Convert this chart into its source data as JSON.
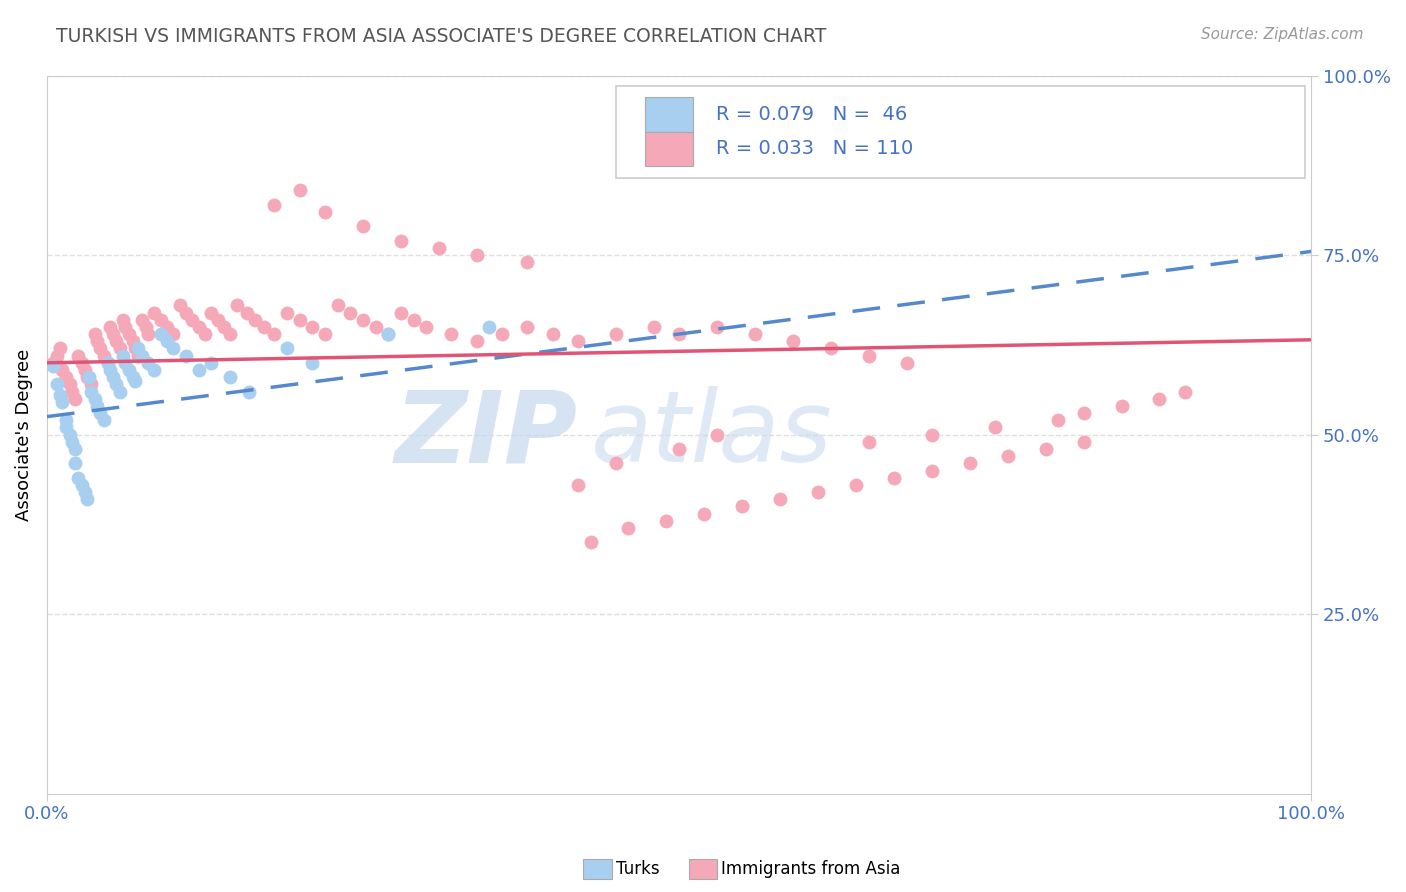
{
  "title": "TURKISH VS IMMIGRANTS FROM ASIA ASSOCIATE'S DEGREE CORRELATION CHART",
  "source": "Source: ZipAtlas.com",
  "ylabel": "Associate's Degree",
  "watermark_zip": "ZIP",
  "watermark_atlas": "atlas",
  "xlim": [
    0.0,
    1.0
  ],
  "ylim": [
    0.0,
    1.0
  ],
  "turks_color": "#a8cef0",
  "turks_edge": "#a8cef0",
  "asia_color": "#f5a8b8",
  "asia_edge": "#f5a8b8",
  "trend_turks_color": "#5588cc",
  "trend_asia_color": "#e05575",
  "R_turks": 0.079,
  "N_turks": 46,
  "R_asia": 0.033,
  "N_asia": 110,
  "legend_text_color": "#4472c4",
  "tick_color": "#4472c4",
  "title_color": "#555555",
  "source_color": "#999999",
  "grid_color": "#e0e0e0",
  "turks_x": [
    0.005,
    0.008,
    0.01,
    0.012,
    0.015,
    0.015,
    0.018,
    0.02,
    0.022,
    0.022,
    0.025,
    0.028,
    0.03,
    0.032,
    0.033,
    0.035,
    0.038,
    0.04,
    0.042,
    0.045,
    0.048,
    0.05,
    0.052,
    0.055,
    0.058,
    0.06,
    0.062,
    0.065,
    0.068,
    0.07,
    0.072,
    0.075,
    0.08,
    0.085,
    0.09,
    0.095,
    0.1,
    0.11,
    0.12,
    0.13,
    0.145,
    0.16,
    0.19,
    0.21,
    0.27,
    0.35
  ],
  "turks_y": [
    0.595,
    0.57,
    0.555,
    0.545,
    0.52,
    0.51,
    0.5,
    0.49,
    0.48,
    0.46,
    0.44,
    0.43,
    0.42,
    0.41,
    0.58,
    0.56,
    0.55,
    0.54,
    0.53,
    0.52,
    0.6,
    0.59,
    0.58,
    0.57,
    0.56,
    0.61,
    0.6,
    0.59,
    0.58,
    0.575,
    0.62,
    0.61,
    0.6,
    0.59,
    0.64,
    0.63,
    0.62,
    0.61,
    0.59,
    0.6,
    0.58,
    0.56,
    0.62,
    0.6,
    0.64,
    0.65
  ],
  "asia_x": [
    0.005,
    0.008,
    0.01,
    0.012,
    0.015,
    0.018,
    0.02,
    0.022,
    0.025,
    0.028,
    0.03,
    0.032,
    0.035,
    0.038,
    0.04,
    0.042,
    0.045,
    0.048,
    0.05,
    0.052,
    0.055,
    0.058,
    0.06,
    0.062,
    0.065,
    0.068,
    0.07,
    0.072,
    0.075,
    0.078,
    0.08,
    0.085,
    0.09,
    0.095,
    0.1,
    0.105,
    0.11,
    0.115,
    0.12,
    0.125,
    0.13,
    0.135,
    0.14,
    0.145,
    0.15,
    0.158,
    0.165,
    0.172,
    0.18,
    0.19,
    0.2,
    0.21,
    0.22,
    0.23,
    0.24,
    0.25,
    0.26,
    0.27,
    0.28,
    0.29,
    0.3,
    0.32,
    0.34,
    0.36,
    0.38,
    0.4,
    0.42,
    0.45,
    0.48,
    0.5,
    0.53,
    0.56,
    0.59,
    0.62,
    0.65,
    0.68,
    0.42,
    0.45,
    0.5,
    0.53,
    0.18,
    0.2,
    0.22,
    0.25,
    0.28,
    0.31,
    0.34,
    0.38,
    0.65,
    0.7,
    0.75,
    0.8,
    0.82,
    0.85,
    0.88,
    0.9,
    0.43,
    0.46,
    0.49,
    0.52,
    0.55,
    0.58,
    0.61,
    0.64,
    0.67,
    0.7,
    0.73,
    0.76,
    0.79,
    0.82
  ],
  "asia_y": [
    0.6,
    0.61,
    0.62,
    0.59,
    0.58,
    0.57,
    0.56,
    0.55,
    0.61,
    0.6,
    0.59,
    0.58,
    0.57,
    0.64,
    0.63,
    0.62,
    0.61,
    0.6,
    0.65,
    0.64,
    0.63,
    0.62,
    0.66,
    0.65,
    0.64,
    0.63,
    0.62,
    0.61,
    0.66,
    0.65,
    0.64,
    0.67,
    0.66,
    0.65,
    0.64,
    0.68,
    0.67,
    0.66,
    0.65,
    0.64,
    0.67,
    0.66,
    0.65,
    0.64,
    0.68,
    0.67,
    0.66,
    0.65,
    0.64,
    0.67,
    0.66,
    0.65,
    0.64,
    0.68,
    0.67,
    0.66,
    0.65,
    0.64,
    0.67,
    0.66,
    0.65,
    0.64,
    0.63,
    0.64,
    0.65,
    0.64,
    0.63,
    0.64,
    0.65,
    0.64,
    0.65,
    0.64,
    0.63,
    0.62,
    0.61,
    0.6,
    0.43,
    0.46,
    0.48,
    0.5,
    0.82,
    0.84,
    0.81,
    0.79,
    0.77,
    0.76,
    0.75,
    0.74,
    0.49,
    0.5,
    0.51,
    0.52,
    0.53,
    0.54,
    0.55,
    0.56,
    0.35,
    0.37,
    0.38,
    0.39,
    0.4,
    0.41,
    0.42,
    0.43,
    0.44,
    0.45,
    0.46,
    0.47,
    0.48,
    0.49
  ]
}
